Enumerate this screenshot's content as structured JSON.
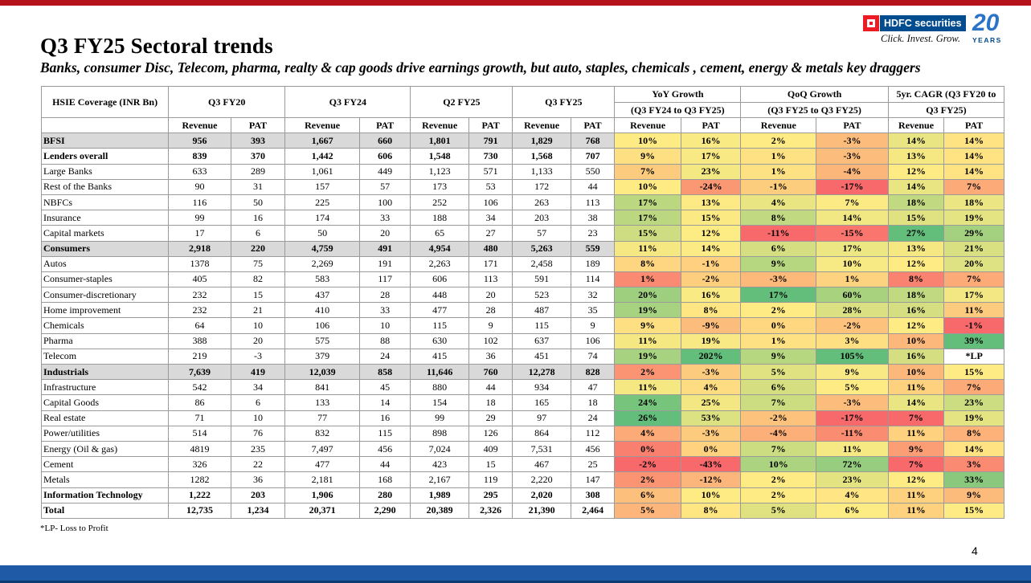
{
  "title": "Q3 FY25 Sectoral trends",
  "subtitle": "Banks, consumer Disc, Telecom, pharma, realty & cap goods drive earnings growth, but auto, staples, chemicals , cement, energy & metals key draggers",
  "logo": {
    "brand": "HDFC securities",
    "tagline": "Click. Invest. Grow.",
    "anniversary": "20",
    "anniversary_sub": "YEARS"
  },
  "table": {
    "row_header": "HSIE Coverage (INR Bn)",
    "groups": [
      "Q3 FY20",
      "Q3 FY24",
      "Q2 FY25",
      "Q3 FY25"
    ],
    "growth_groups": [
      {
        "line1": "YoY Growth",
        "line2": "(Q3 FY24 to Q3 FY25)"
      },
      {
        "line1": "QoQ Growth",
        "line2": "(Q3 FY25 to Q3 FY25)"
      },
      {
        "line1": "5yr. CAGR (Q3 FY20 to",
        "line2": "Q3 FY25)"
      }
    ],
    "sub_headers": [
      "Revenue",
      "PAT",
      "Revenue",
      "PAT",
      "Revenue",
      "PAT",
      "Revenue",
      "PAT",
      "Revenue",
      "PAT",
      "Revenue",
      "PAT",
      "Revenue",
      "PAT"
    ],
    "rows": [
      {
        "name": "BFSI",
        "style": "grey",
        "vals": [
          "956",
          "393",
          "1,667",
          "660",
          "1,801",
          "791",
          "1,829",
          "768"
        ],
        "growth": [
          "10%",
          "16%",
          "2%",
          "-3%",
          "14%",
          "14%"
        ]
      },
      {
        "name": " Lenders overall",
        "style": "bold",
        "vals": [
          "839",
          "370",
          "1,442",
          "606",
          "1,548",
          "730",
          "1,568",
          "707"
        ],
        "growth": [
          "9%",
          "17%",
          "1%",
          "-3%",
          "13%",
          "14%"
        ]
      },
      {
        "name": "Large Banks",
        "style": "",
        "vals": [
          "633",
          "289",
          "1,061",
          "449",
          "1,123",
          "571",
          "1,133",
          "550"
        ],
        "growth": [
          "7%",
          "23%",
          "1%",
          "-4%",
          "12%",
          "14%"
        ]
      },
      {
        "name": "Rest of the Banks",
        "style": "",
        "vals": [
          "90",
          "31",
          "157",
          "57",
          "173",
          "53",
          "172",
          "44"
        ],
        "growth": [
          "10%",
          "-24%",
          "-1%",
          "-17%",
          "14%",
          "7%"
        ]
      },
      {
        "name": "NBFCs",
        "style": "",
        "vals": [
          "116",
          "50",
          "225",
          "100",
          "252",
          "106",
          "263",
          "113"
        ],
        "growth": [
          "17%",
          "13%",
          "4%",
          "7%",
          "18%",
          "18%"
        ]
      },
      {
        "name": "Insurance",
        "style": "",
        "vals": [
          "99",
          "16",
          "174",
          "33",
          "188",
          "34",
          "203",
          "38"
        ],
        "growth": [
          "17%",
          "15%",
          "8%",
          "14%",
          "15%",
          "19%"
        ]
      },
      {
        "name": "Capital markets",
        "style": "",
        "vals": [
          "17",
          "6",
          "50",
          "20",
          "65",
          "27",
          "57",
          "23"
        ],
        "growth": [
          "15%",
          "12%",
          "-11%",
          "-15%",
          "27%",
          "29%"
        ]
      },
      {
        "name": "Consumers",
        "style": "grey",
        "vals": [
          "2,918",
          "220",
          "4,759",
          "491",
          "4,954",
          "480",
          "5,263",
          "559"
        ],
        "growth": [
          "11%",
          "14%",
          "6%",
          "17%",
          "13%",
          "21%"
        ]
      },
      {
        "name": "Autos",
        "style": "",
        "vals": [
          "1378",
          "75",
          "2,269",
          "191",
          "2,263",
          "171",
          "2,458",
          "189"
        ],
        "growth": [
          "8%",
          "-1%",
          "9%",
          "10%",
          "12%",
          "20%"
        ]
      },
      {
        "name": "Consumer-staples",
        "style": "",
        "vals": [
          "405",
          "82",
          "583",
          "117",
          "606",
          "113",
          "591",
          "114"
        ],
        "growth": [
          "1%",
          "-2%",
          "-3%",
          "1%",
          "8%",
          "7%"
        ]
      },
      {
        "name": "Consumer-discretionary",
        "style": "",
        "vals": [
          "232",
          "15",
          "437",
          "28",
          "448",
          "20",
          "523",
          "32"
        ],
        "growth": [
          "20%",
          "16%",
          "17%",
          "60%",
          "18%",
          "17%"
        ]
      },
      {
        "name": "Home improvement",
        "style": "",
        "vals": [
          "232",
          "21",
          "410",
          "33",
          "477",
          "28",
          "487",
          "35"
        ],
        "growth": [
          "19%",
          "8%",
          "2%",
          "28%",
          "16%",
          "11%"
        ]
      },
      {
        "name": "Chemicals",
        "style": "",
        "vals": [
          "64",
          "10",
          "106",
          "10",
          "115",
          "9",
          "115",
          "9"
        ],
        "growth": [
          "9%",
          "-9%",
          "0%",
          "-2%",
          "12%",
          "-1%"
        ]
      },
      {
        "name": "Pharma",
        "style": "",
        "vals": [
          "388",
          "20",
          "575",
          "88",
          "630",
          "102",
          "637",
          "106"
        ],
        "growth": [
          "11%",
          "19%",
          "1%",
          "3%",
          "10%",
          "39%"
        ]
      },
      {
        "name": "Telecom",
        "style": "",
        "vals": [
          "219",
          "-3",
          "379",
          "24",
          "415",
          "36",
          "451",
          "74"
        ],
        "growth": [
          "19%",
          "202%",
          "9%",
          "105%",
          "16%",
          "*LP"
        ]
      },
      {
        "name": "Industrials",
        "style": "grey",
        "vals": [
          "7,639",
          "419",
          "12,039",
          "858",
          "11,646",
          "760",
          "12,278",
          "828"
        ],
        "growth": [
          "2%",
          "-3%",
          "5%",
          "9%",
          "10%",
          "15%"
        ]
      },
      {
        "name": "Infrastructure",
        "style": "",
        "vals": [
          "542",
          "34",
          "841",
          "45",
          "880",
          "44",
          "934",
          "47"
        ],
        "growth": [
          "11%",
          "4%",
          "6%",
          "5%",
          "11%",
          "7%"
        ]
      },
      {
        "name": "Capital Goods",
        "style": "",
        "vals": [
          "86",
          "6",
          "133",
          "14",
          "154",
          "18",
          "165",
          "18"
        ],
        "growth": [
          "24%",
          "25%",
          "7%",
          "-3%",
          "14%",
          "23%"
        ]
      },
      {
        "name": "Real estate",
        "style": "",
        "vals": [
          "71",
          "10",
          "77",
          "16",
          "99",
          "29",
          "97",
          "24"
        ],
        "growth": [
          "26%",
          "53%",
          "-2%",
          "-17%",
          "7%",
          "19%"
        ]
      },
      {
        "name": "Power/utilities",
        "style": "",
        "vals": [
          "514",
          "76",
          "832",
          "115",
          "898",
          "126",
          "864",
          "112"
        ],
        "growth": [
          "4%",
          "-3%",
          "-4%",
          "-11%",
          "11%",
          "8%"
        ]
      },
      {
        "name": "Energy (Oil & gas)",
        "style": "",
        "vals": [
          "4819",
          "235",
          "7,497",
          "456",
          "7,024",
          "409",
          "7,531",
          "456"
        ],
        "growth": [
          "0%",
          "0%",
          "7%",
          "11%",
          "9%",
          "14%"
        ]
      },
      {
        "name": "Cement",
        "style": "",
        "vals": [
          "326",
          "22",
          "477",
          "44",
          "423",
          "15",
          "467",
          "25"
        ],
        "growth": [
          "-2%",
          "-43%",
          "10%",
          "72%",
          "7%",
          "3%"
        ]
      },
      {
        "name": "Metals",
        "style": "",
        "vals": [
          "1282",
          "36",
          "2,181",
          "168",
          "2,167",
          "119",
          "2,220",
          "147"
        ],
        "growth": [
          "2%",
          "-12%",
          "2%",
          "23%",
          "12%",
          "33%"
        ]
      },
      {
        "name": "Information Technology",
        "style": "bold",
        "vals": [
          "1,222",
          "203",
          "1,906",
          "280",
          "1,989",
          "295",
          "2,020",
          "308"
        ],
        "growth": [
          "6%",
          "10%",
          "2%",
          "4%",
          "11%",
          "9%"
        ]
      },
      {
        "name": "Total",
        "style": "bold",
        "vals": [
          "12,735",
          "1,234",
          "20,371",
          "2,290",
          "20,389",
          "2,326",
          "21,390",
          "2,464"
        ],
        "growth": [
          "5%",
          "8%",
          "5%",
          "6%",
          "11%",
          "15%"
        ]
      }
    ]
  },
  "colors": {
    "header_grey": "#d9d9d9",
    "heat_green": "#63be7b",
    "heat_yellow": "#ffeb84",
    "heat_red": "#f8696b",
    "top_bar": "#b5121b",
    "bottom_bar": "#1f5aa6"
  },
  "footnote": "*LP- Loss to Profit",
  "page_number": "4"
}
